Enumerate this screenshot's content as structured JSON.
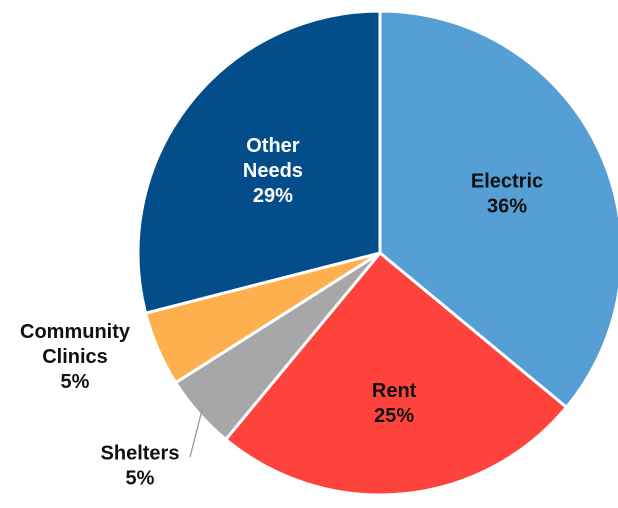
{
  "chart_data": {
    "type": "pie",
    "title": "",
    "slices": [
      {
        "name": "Electric",
        "label_lines": [
          "Electric",
          "36%"
        ],
        "value": 36,
        "color": "#559fd4"
      },
      {
        "name": "Rent",
        "label_lines": [
          "Rent",
          "25%"
        ],
        "value": 25,
        "color": "#fe433d"
      },
      {
        "name": "Shelters",
        "label_lines": [
          "Shelters",
          "5%"
        ],
        "value": 5,
        "color": "#a7a7a7"
      },
      {
        "name": "Community Clinics",
        "label_lines": [
          "Community",
          "Clinics",
          "5%"
        ],
        "value": 5,
        "color": "#feb04e"
      },
      {
        "name": "Other Needs",
        "label_lines": [
          "Other",
          "Needs",
          "29%"
        ],
        "value": 29,
        "color": "#034d8b"
      }
    ],
    "start": "12 o'clock",
    "direction": "clockwise",
    "legend": "none"
  }
}
